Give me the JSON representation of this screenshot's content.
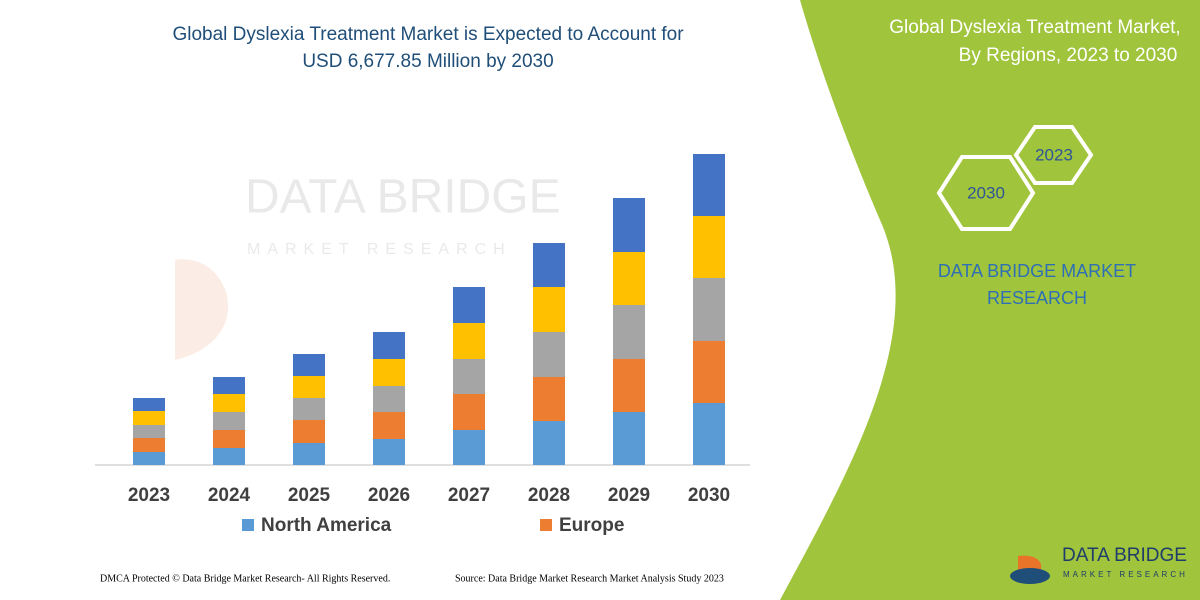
{
  "chart_data": {
    "type": "bar",
    "stacked": true,
    "title": [
      "Global Dyslexia Treatment Market is Expected to Account for",
      "USD 6,677.85 Million by 2030"
    ],
    "categories": [
      "2023",
      "2024",
      "2025",
      "2026",
      "2027",
      "2028",
      "2029",
      "2030"
    ],
    "series": [
      {
        "name": "North America",
        "color": "#5b9bd5",
        "values": [
          13,
          17,
          22,
          26,
          35,
          44,
          53,
          62
        ]
      },
      {
        "name": "Europe",
        "color": "#ed7d31",
        "values": [
          14,
          18,
          23,
          27,
          36,
          44,
          53,
          62
        ]
      },
      {
        "color": "#a5a5a5",
        "values": [
          13,
          18,
          22,
          26,
          35,
          45,
          54,
          63
        ]
      },
      {
        "color": "#ffc000",
        "values": [
          14,
          18,
          22,
          27,
          36,
          45,
          53,
          62
        ]
      },
      {
        "color": "#4472c4",
        "values": [
          13,
          17,
          22,
          27,
          36,
          44,
          54,
          62
        ]
      }
    ]
  },
  "watermark": {
    "name": "DATA BRIDGE",
    "tagline": "MARKET RESEARCH"
  },
  "side_panel": {
    "title": [
      "Global Dyslexia Treatment Market,",
      "By Regions, 2023 to 2030"
    ],
    "hex_start": "2023",
    "hex_end": "2030",
    "company": [
      "DATA BRIDGE MARKET",
      "RESEARCH"
    ]
  },
  "logo": {
    "name": "DATA BRIDGE",
    "tagline": "MARKET RESEARCH"
  },
  "footer": {
    "copyright": "DMCA Protected © Data Bridge Market Research-  All Rights Reserved.",
    "source": "Source: Data Bridge Market Research  Market Analysis Study 2023"
  }
}
